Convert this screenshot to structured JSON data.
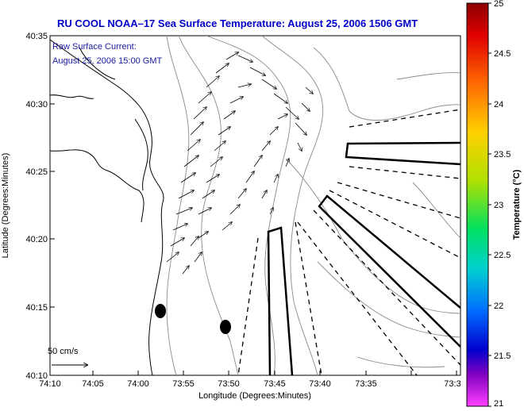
{
  "title": "RU COOL  NOAA–17  Sea Surface Temperature:  August 25, 2006 1506 GMT",
  "current_note": {
    "line1": "Raw Surface Current:",
    "line2": "August 25, 2006 15:00 GMT"
  },
  "scale_label": "50 cm/s",
  "axes": {
    "xlabel": "Longitude (Degrees:Minutes)",
    "ylabel": "Latitude (Degrees:Minutes)",
    "x_ticks": [
      "74:10",
      "74:05",
      "74:00",
      "73:55",
      "73:50",
      "73:45",
      "73:40",
      "73:35",
      "73:3"
    ],
    "y_ticks": [
      "40:35",
      "40:30",
      "40:25",
      "40:20",
      "40:15",
      "40:10"
    ]
  },
  "colorbar": {
    "label": "Temperature (°C)",
    "ticks": [
      "25",
      "24.5",
      "24",
      "23.5",
      "23",
      "22.5",
      "22",
      "21.5",
      "21"
    ],
    "min": 21,
    "max": 25
  },
  "colors": {
    "title": "#0000cc",
    "note": "#1a1aa0",
    "land": "#ffffff",
    "coast": "#000000",
    "bathymetry": "#888888"
  }
}
